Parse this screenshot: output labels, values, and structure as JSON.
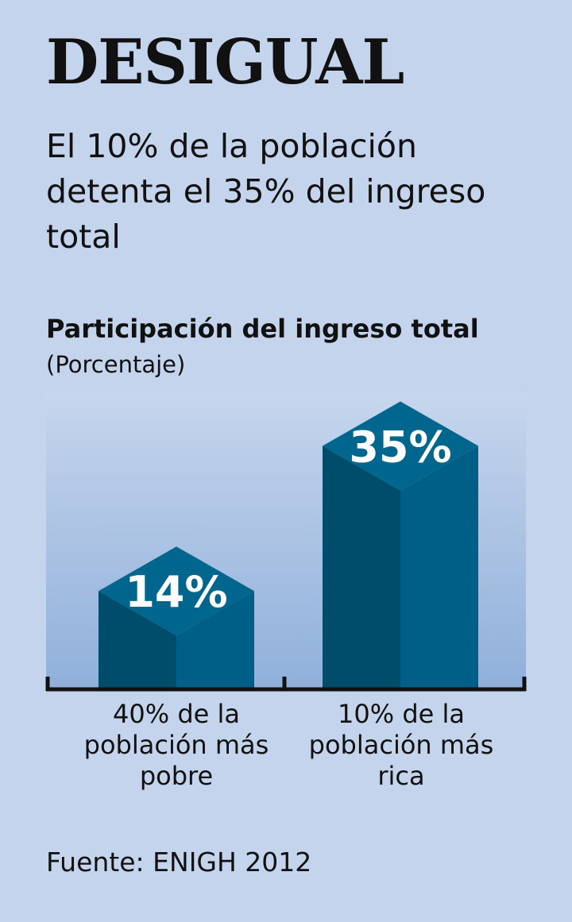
{
  "header": {
    "title": "DESIGUAL",
    "subtitle": "El 10% de la población detenta el 35% del ingreso total"
  },
  "chart_data": {
    "type": "bar",
    "title": "Participación del ingreso total",
    "unit_label": "(Porcentaje)",
    "categories": [
      "40% de la población más pobre",
      "10% de la población más rica"
    ],
    "values": [
      14,
      35
    ],
    "data_labels": [
      "14%",
      "35%"
    ],
    "ylabel": "Porcentaje",
    "ylim": [
      0,
      40
    ],
    "grid": false,
    "colors": {
      "left_face": "#004d6b",
      "right_face": "#005f86",
      "top_face": "#00668e"
    }
  },
  "footer": {
    "source": "Fuente: ENIGH 2012"
  }
}
